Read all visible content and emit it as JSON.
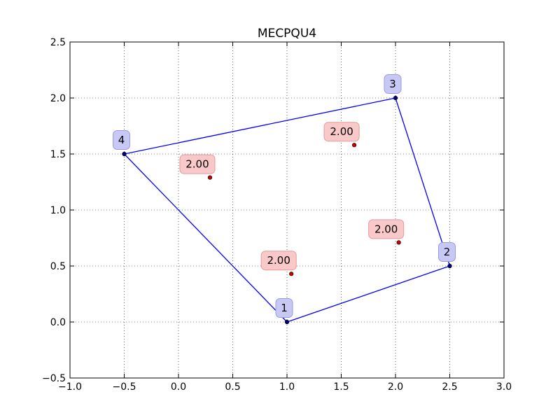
{
  "chart_data": {
    "type": "scatter",
    "title": "MECPQU4",
    "xlabel": "",
    "ylabel": "",
    "xlim": [
      -1.0,
      3.0
    ],
    "ylim": [
      -0.5,
      2.5
    ],
    "xticks": [
      "−1.0",
      "−0.5",
      "0.0",
      "0.5",
      "1.0",
      "1.5",
      "2.0",
      "2.5",
      "3.0"
    ],
    "yticks": [
      "−0.5",
      "0.0",
      "0.5",
      "1.0",
      "1.5",
      "2.0",
      "2.5"
    ],
    "xtick_values": [
      -1.0,
      -0.5,
      0.0,
      0.5,
      1.0,
      1.5,
      2.0,
      2.5,
      3.0
    ],
    "ytick_values": [
      -0.5,
      0.0,
      0.5,
      1.0,
      1.5,
      2.0,
      2.5
    ],
    "grid": true,
    "grid_style": "dotted",
    "nodes": [
      {
        "label": "1",
        "x": 1.0,
        "y": 0.0
      },
      {
        "label": "2",
        "x": 2.5,
        "y": 0.5
      },
      {
        "label": "3",
        "x": 2.0,
        "y": 2.0
      },
      {
        "label": "4",
        "x": -0.5,
        "y": 1.5
      }
    ],
    "element_edges_order": [
      "1",
      "2",
      "3",
      "4",
      "1"
    ],
    "quadrature_points": [
      {
        "label": "2.00",
        "x": 1.04,
        "y": 0.43
      },
      {
        "label": "2.00",
        "x": 2.03,
        "y": 0.71
      },
      {
        "label": "2.00",
        "x": 1.62,
        "y": 1.58
      },
      {
        "label": "2.00",
        "x": 0.29,
        "y": 1.29
      }
    ],
    "colors": {
      "edge": "#0000ff",
      "node_marker": "#000080",
      "node_label_bg": "#c8c8f5",
      "node_label_border": "#9a9ae6",
      "qp_marker": "#cc0000",
      "qp_label_bg": "#f9c9c9",
      "qp_label_border": "#e09b9b",
      "grid": "#000000",
      "axes": "#000000"
    }
  }
}
